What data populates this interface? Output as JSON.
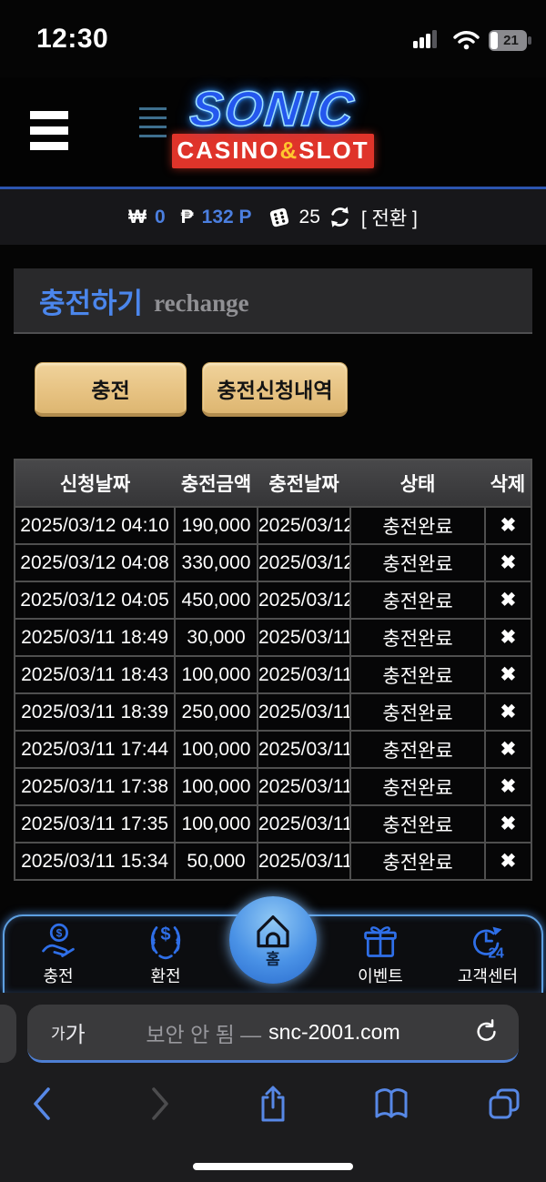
{
  "status_bar": {
    "time": "12:30",
    "battery_percent": "21"
  },
  "header": {
    "logo_main": "SONIC",
    "logo_sub_left": "CASINO",
    "logo_sub_amp": "&",
    "logo_sub_right": "SLOT"
  },
  "balance_bar": {
    "won_symbol": "₩",
    "won_value": "0",
    "peso_symbol": "₱",
    "peso_value": "132 P",
    "ticket_count": "25",
    "convert_label": "[ 전환 ]"
  },
  "page": {
    "title": "충전하기",
    "subtitle": "rechange"
  },
  "actions": {
    "recharge_label": "충전",
    "history_label": "충전신청내역"
  },
  "table": {
    "headers": [
      "신청날짜",
      "충전금액",
      "충전날짜",
      "상태",
      "삭제"
    ],
    "delete_glyph": "✖",
    "rows": [
      {
        "request_date": "2025/03/12 04:10",
        "amount": "190,000",
        "recharge_date": "2025/03/12",
        "status": "충전완료"
      },
      {
        "request_date": "2025/03/12 04:08",
        "amount": "330,000",
        "recharge_date": "2025/03/12",
        "status": "충전완료"
      },
      {
        "request_date": "2025/03/12 04:05",
        "amount": "450,000",
        "recharge_date": "2025/03/12",
        "status": "충전완료"
      },
      {
        "request_date": "2025/03/11 18:49",
        "amount": "30,000",
        "recharge_date": "2025/03/11",
        "status": "충전완료"
      },
      {
        "request_date": "2025/03/11 18:43",
        "amount": "100,000",
        "recharge_date": "2025/03/11",
        "status": "충전완료"
      },
      {
        "request_date": "2025/03/11 18:39",
        "amount": "250,000",
        "recharge_date": "2025/03/11",
        "status": "충전완료"
      },
      {
        "request_date": "2025/03/11 17:44",
        "amount": "100,000",
        "recharge_date": "2025/03/11",
        "status": "충전완료"
      },
      {
        "request_date": "2025/03/11 17:38",
        "amount": "100,000",
        "recharge_date": "2025/03/11",
        "status": "충전완료"
      },
      {
        "request_date": "2025/03/11 17:35",
        "amount": "100,000",
        "recharge_date": "2025/03/11",
        "status": "충전완료"
      },
      {
        "request_date": "2025/03/11 15:34",
        "amount": "50,000",
        "recharge_date": "2025/03/11",
        "status": "충전완료"
      }
    ]
  },
  "bottom_nav": {
    "items": [
      {
        "label": "충전"
      },
      {
        "label": "환전"
      },
      {
        "label": "홈"
      },
      {
        "label": "이벤트"
      },
      {
        "label": "고객센터"
      }
    ]
  },
  "browser": {
    "text_size_small": "가",
    "text_size_big": "가",
    "security_text": "보안 안 됨 —",
    "domain": "snc-2001.com"
  },
  "colors": {
    "accent_blue": "#4b86ec",
    "nav_icon_blue": "#2f6fe8",
    "button_tan": "#e7c383",
    "logo_red": "#df342a",
    "amp_yellow": "#ffc62e",
    "link_blue": "#4e8ed8",
    "safari_tint": "#5788e6"
  }
}
